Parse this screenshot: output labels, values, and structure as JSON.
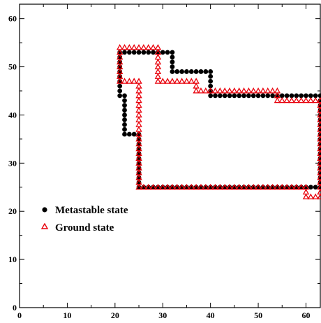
{
  "chart_data": {
    "type": "scatter",
    "title": "",
    "xlabel": "",
    "ylabel": "",
    "xlim": [
      0,
      63
    ],
    "ylim": [
      0,
      63
    ],
    "xticks": [
      0,
      10,
      20,
      30,
      40,
      50,
      60
    ],
    "yticks": [
      0,
      10,
      20,
      30,
      40,
      50,
      60
    ],
    "x_tick_labels": [
      "0",
      "10",
      "20",
      "30",
      "40",
      "50",
      "60"
    ],
    "y_tick_labels": [
      "0",
      "10",
      "20",
      "30",
      "40",
      "50",
      "60"
    ],
    "grid": false,
    "legend_position": "center-left",
    "series": [
      {
        "name": "Metastable state",
        "marker": "circle",
        "color": "#000000",
        "path": [
          [
            21,
            53
          ],
          [
            32,
            53
          ],
          [
            32,
            49
          ],
          [
            40,
            49
          ],
          [
            40,
            44
          ],
          [
            63,
            44
          ],
          [
            63,
            25
          ],
          [
            61,
            25
          ],
          [
            61,
            25
          ],
          [
            25,
            25
          ],
          [
            25,
            36
          ],
          [
            22,
            36
          ],
          [
            22,
            44
          ],
          [
            21,
            44
          ],
          [
            21,
            53
          ]
        ]
      },
      {
        "name": "Ground state",
        "marker": "triangle",
        "color": "#e8000b",
        "path": [
          [
            21,
            54
          ],
          [
            29,
            54
          ],
          [
            29,
            47
          ],
          [
            37,
            47
          ],
          [
            37,
            45
          ],
          [
            54,
            45
          ],
          [
            54,
            43
          ],
          [
            63,
            43
          ],
          [
            63,
            23
          ],
          [
            60,
            23
          ],
          [
            60,
            25
          ],
          [
            25,
            25
          ],
          [
            25,
            47
          ],
          [
            21,
            47
          ],
          [
            21,
            54
          ]
        ]
      }
    ]
  }
}
